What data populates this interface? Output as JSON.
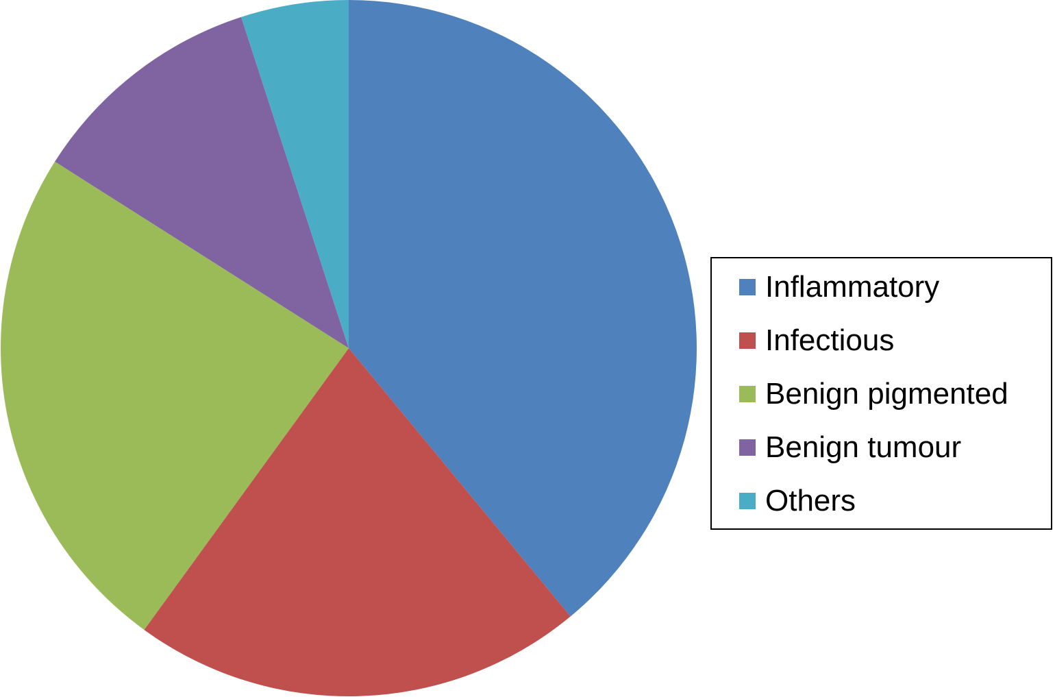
{
  "chart_data": {
    "type": "pie",
    "title": "",
    "start_angle_deg": 0,
    "direction": "clockwise",
    "categories": [
      "Inflammatory",
      "Infectious",
      "Benign pigmented",
      "Benign tumour",
      "Others"
    ],
    "values": [
      39,
      21,
      24,
      11,
      5
    ],
    "colors": [
      "#4F81BD",
      "#C0504D",
      "#9BBB59",
      "#8064A2",
      "#4BACC6"
    ],
    "legend": {
      "position": "right",
      "entries": [
        {
          "label": "Inflammatory",
          "color": "#4F81BD"
        },
        {
          "label": "Infectious",
          "color": "#C0504D"
        },
        {
          "label": "Benign pigmented",
          "color": "#9BBB59"
        },
        {
          "label": "Benign tumour",
          "color": "#8064A2"
        },
        {
          "label": "Others",
          "color": "#4BACC6"
        }
      ]
    }
  }
}
